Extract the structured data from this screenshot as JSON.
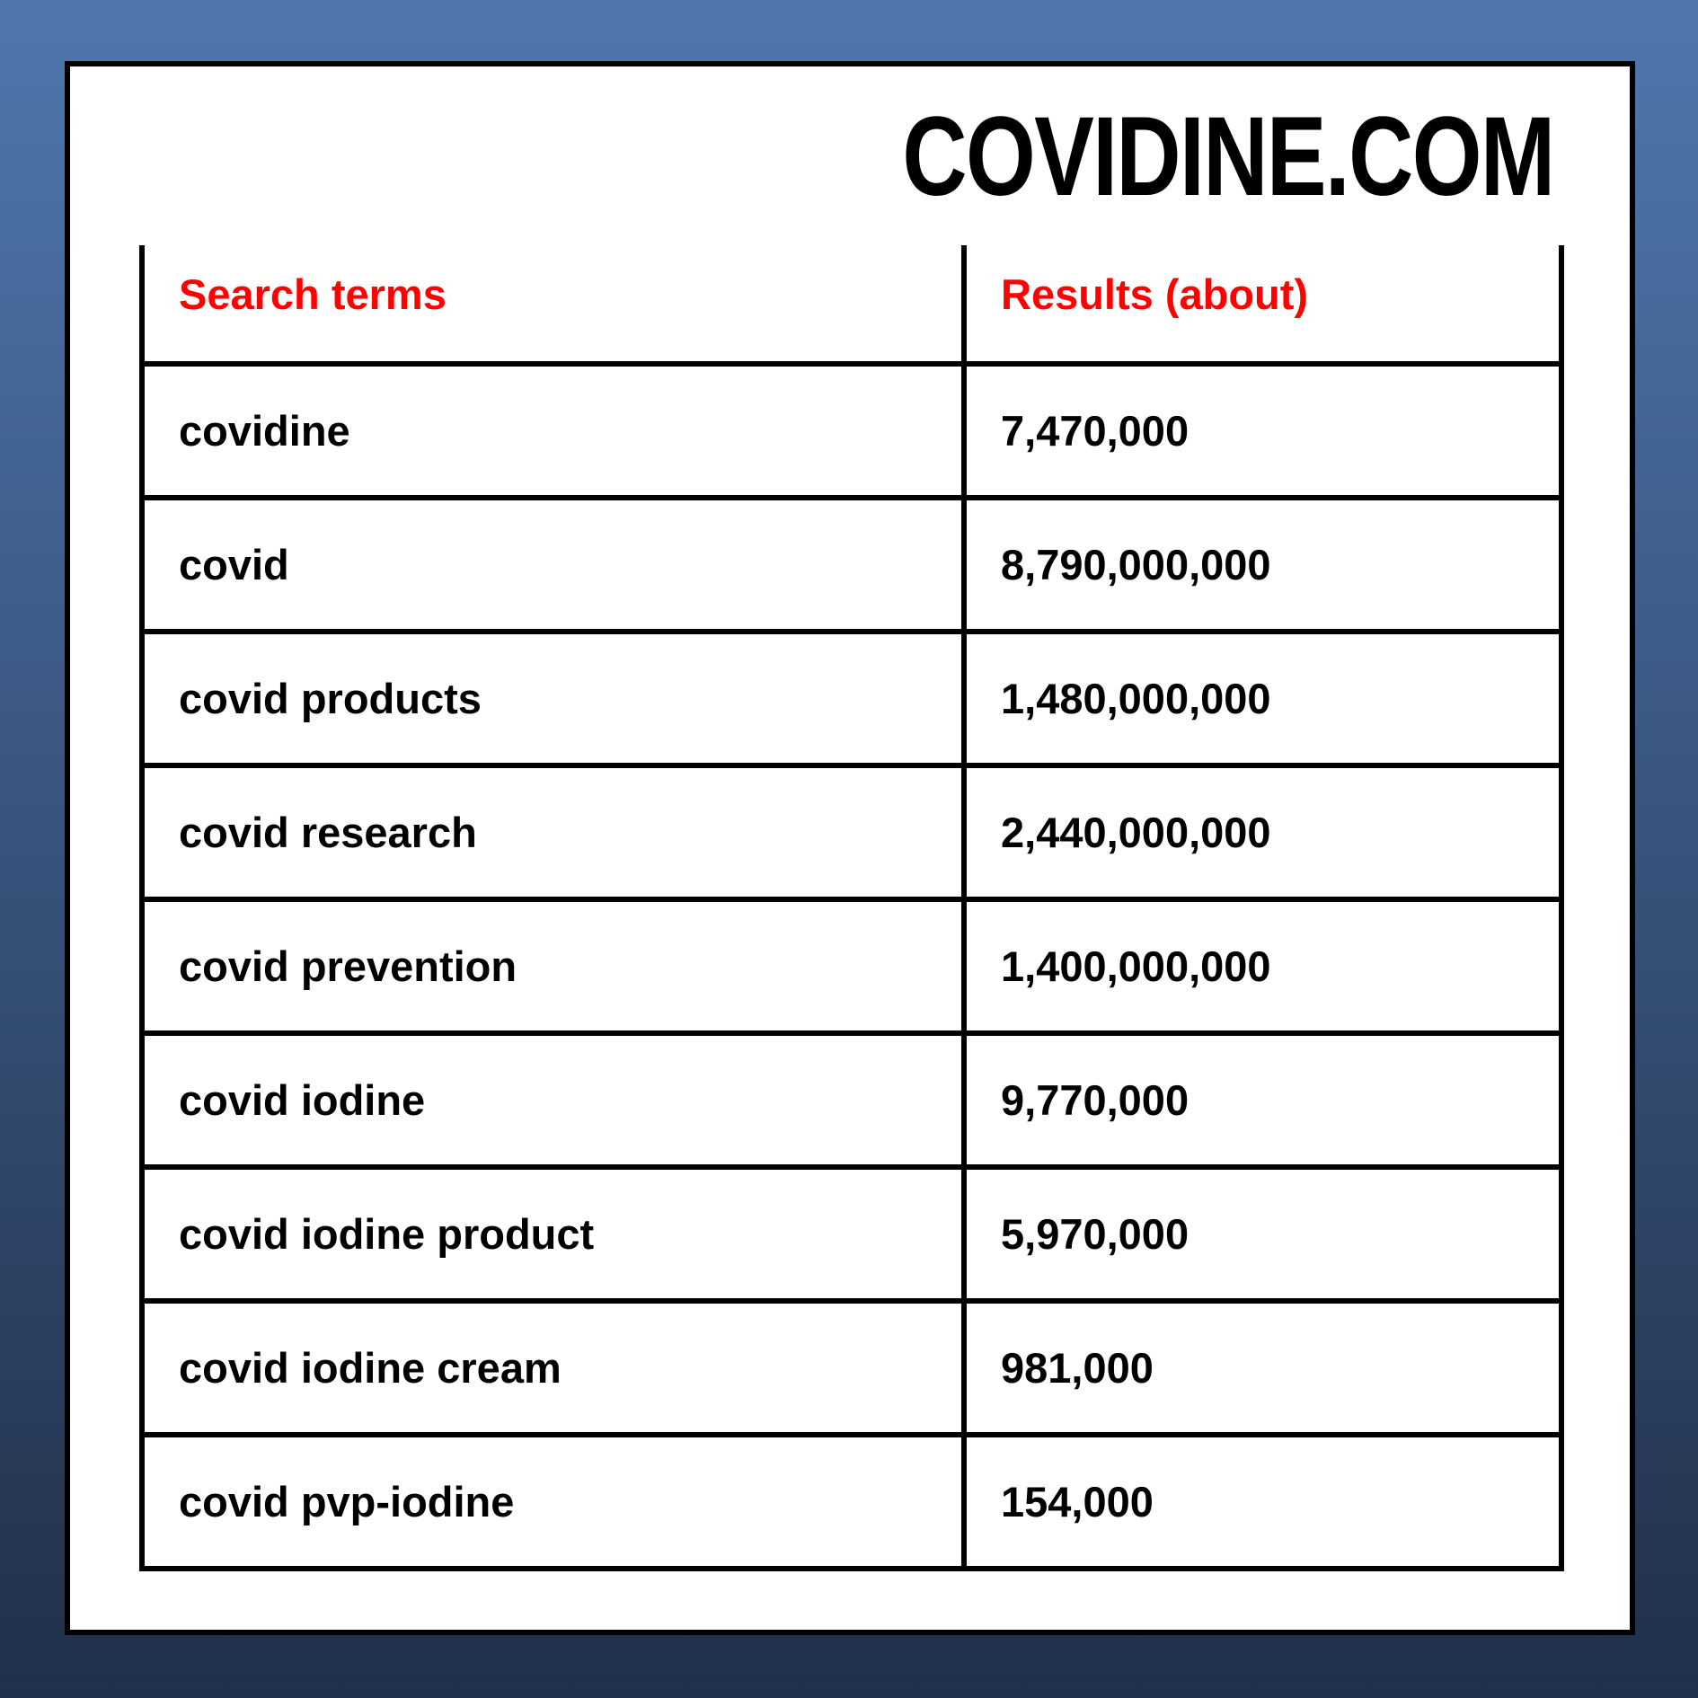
{
  "title": "COVIDINE.COM",
  "table": {
    "columns": [
      "Search terms",
      "Results (about)"
    ],
    "rows": [
      {
        "term": "covidine",
        "results": "7,470,000"
      },
      {
        "term": "covid",
        "results": "8,790,000,000"
      },
      {
        "term": "covid products",
        "results": "1,480,000,000"
      },
      {
        "term": "covid research",
        "results": "2,440,000,000"
      },
      {
        "term": "covid prevention",
        "results": "1,400,000,000"
      },
      {
        "term": "covid iodine",
        "results": "9,770,000"
      },
      {
        "term": "covid iodine product",
        "results": "5,970,000"
      },
      {
        "term": "covid iodine cream",
        "results": "981,000"
      },
      {
        "term": "covid pvp-iodine",
        "results": "154,000"
      }
    ]
  },
  "colors": {
    "background_top": "#4f77ad",
    "background_bottom": "#21304a",
    "card_background": "#ffffff",
    "table_border": "#000000",
    "header_text": "#fe0101",
    "body_text": "#000000"
  },
  "chart_data": {
    "type": "table",
    "title": "COVIDINE.COM",
    "columns": [
      "Search terms",
      "Results (about)"
    ],
    "rows": [
      [
        "covidine",
        7470000
      ],
      [
        "covid",
        8790000000
      ],
      [
        "covid products",
        1480000000
      ],
      [
        "covid research",
        2440000000
      ],
      [
        "covid prevention",
        1400000000
      ],
      [
        "covid iodine",
        9770000
      ],
      [
        "covid iodine product",
        5970000
      ],
      [
        "covid iodine cream",
        981000
      ],
      [
        "covid pvp-iodine",
        154000
      ]
    ]
  }
}
